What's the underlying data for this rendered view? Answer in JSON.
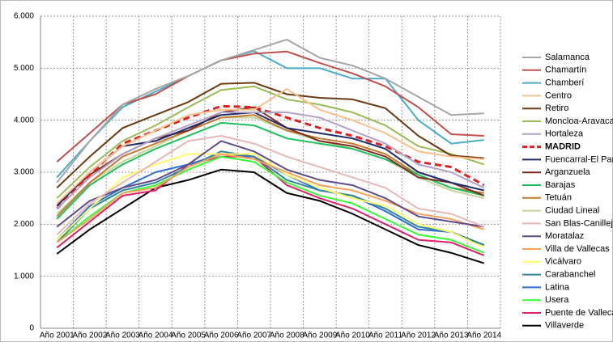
{
  "chart_data": {
    "type": "line",
    "categories": [
      "Año 2001",
      "Año 2002",
      "Año 2003",
      "Año 2004",
      "Año 2005",
      "Año 2006",
      "Año 2007",
      "Año 2008",
      "Año 2009",
      "Año 2010",
      "Año 2011",
      "Año 2012",
      "Año 2013",
      "Año 2014"
    ],
    "ylim": [
      0,
      6000
    ],
    "yticks": [
      {
        "value": 0,
        "label": "0"
      },
      {
        "value": 1000,
        "label": "1.000"
      },
      {
        "value": 2000,
        "label": "2.000"
      },
      {
        "value": 3000,
        "label": "3.000"
      },
      {
        "value": 4000,
        "label": "4.000"
      },
      {
        "value": 5000,
        "label": "5.000"
      },
      {
        "value": 6000,
        "label": "6.000"
      }
    ],
    "grid": true,
    "legend": "right",
    "series": [
      {
        "name": "Salamanca",
        "color": "#a6a6a6",
        "values": [
          2800,
          3600,
          4300,
          4600,
          4850,
          5150,
          5350,
          5550,
          5200,
          5050,
          4800,
          4450,
          4100,
          4130
        ]
      },
      {
        "name": "Chamartín",
        "color": "#c0504d",
        "values": [
          3200,
          3750,
          4300,
          4500,
          4850,
          5150,
          5280,
          5320,
          5100,
          4900,
          4650,
          4250,
          3730,
          3700
        ]
      },
      {
        "name": "Chamberí",
        "color": "#4bacc6",
        "values": [
          2900,
          3600,
          4250,
          4550,
          4850,
          5150,
          5330,
          5000,
          5000,
          4800,
          4800,
          4000,
          3550,
          3620
        ]
      },
      {
        "name": "Centro",
        "color": "#fac090",
        "values": [
          2400,
          3000,
          3500,
          3800,
          4100,
          4200,
          4200,
          4600,
          4200,
          4000,
          3750,
          3400,
          3300,
          3250
        ]
      },
      {
        "name": "Retiro",
        "color": "#6b3a12",
        "values": [
          2700,
          3300,
          3850,
          4100,
          4350,
          4700,
          4720,
          4500,
          4430,
          4400,
          4230,
          3700,
          3320,
          3270
        ]
      },
      {
        "name": "Moncloa-Aravaca",
        "color": "#9bbb59",
        "values": [
          2500,
          3100,
          3600,
          3900,
          4250,
          4580,
          4650,
          4400,
          4300,
          4150,
          3900,
          3500,
          3350,
          3150
        ]
      },
      {
        "name": "Hortaleza",
        "color": "#b3a2c7",
        "values": [
          2300,
          2900,
          3350,
          3650,
          3900,
          4150,
          4150,
          4150,
          4050,
          3800,
          3550,
          3150,
          3000,
          2700
        ]
      },
      {
        "name": "MADRID",
        "color": "#e02020",
        "dashed": true,
        "values": [
          2300,
          2950,
          3550,
          3800,
          4050,
          4270,
          4250,
          4050,
          3850,
          3700,
          3500,
          3200,
          3100,
          2750
        ]
      },
      {
        "name": "Fuencarral-El Pard",
        "color": "#1f2a6b",
        "values": [
          2350,
          3000,
          3500,
          3600,
          3850,
          4100,
          4150,
          3850,
          3750,
          3650,
          3450,
          3000,
          2800,
          2650
        ]
      },
      {
        "name": "Arganzuela",
        "color": "#7f2a1e",
        "values": [
          2400,
          2950,
          3350,
          3650,
          3800,
          4150,
          4250,
          3850,
          3600,
          3500,
          3300,
          2900,
          2800,
          2550
        ]
      },
      {
        "name": "Barajas",
        "color": "#1fbf5f",
        "values": [
          2100,
          2750,
          3150,
          3450,
          3700,
          3950,
          3900,
          3650,
          3550,
          3450,
          3250,
          2950,
          2700,
          2550
        ]
      },
      {
        "name": "Tetuán",
        "color": "#c07a30",
        "values": [
          2150,
          2800,
          3300,
          3550,
          3800,
          4050,
          4100,
          3800,
          3650,
          3550,
          3350,
          2950,
          2700,
          2600
        ]
      },
      {
        "name": "Ciudad Lineal",
        "color": "#c4d79b",
        "values": [
          2200,
          2800,
          3200,
          3500,
          3800,
          4050,
          4050,
          3800,
          3600,
          3450,
          3250,
          2900,
          2650,
          2500
        ]
      },
      {
        "name": "San Blas-Canillejas",
        "color": "#e6b9b8",
        "values": [
          1800,
          2400,
          2800,
          3200,
          3600,
          3700,
          3550,
          3300,
          3100,
          2900,
          2700,
          2300,
          2200,
          1950
        ]
      },
      {
        "name": "Moratalaz",
        "color": "#5f4b8b",
        "values": [
          1950,
          2450,
          2700,
          2850,
          3150,
          3600,
          3400,
          3050,
          2850,
          2750,
          2500,
          2150,
          2050,
          1950
        ]
      },
      {
        "name": "Villa de Vallecas",
        "color": "#f7a35c",
        "values": [
          1650,
          2100,
          2600,
          2700,
          3100,
          3350,
          3250,
          3000,
          2750,
          2650,
          2450,
          2200,
          2100,
          1900
        ]
      },
      {
        "name": "Vicálvaro",
        "color": "#ffff66",
        "values": [
          1700,
          2300,
          2900,
          3150,
          3350,
          3350,
          3350,
          2950,
          2700,
          2500,
          2350,
          2000,
          1850,
          1550
        ]
      },
      {
        "name": "Carabanchel",
        "color": "#31859c",
        "values": [
          1650,
          2300,
          2650,
          2800,
          3100,
          3400,
          3300,
          2850,
          2650,
          2550,
          2300,
          1950,
          1850,
          1600
        ]
      },
      {
        "name": "Latina",
        "color": "#2f6fd0",
        "values": [
          1700,
          2350,
          2700,
          3000,
          3150,
          3350,
          3300,
          2950,
          2650,
          2550,
          2250,
          1900,
          1850,
          1600
        ]
      },
      {
        "name": "Usera",
        "color": "#33ff33",
        "values": [
          1650,
          2150,
          2600,
          2750,
          3050,
          3300,
          3200,
          2800,
          2550,
          2400,
          2100,
          1800,
          1700,
          1450
        ]
      },
      {
        "name": "Puente de Vallecas",
        "color": "#e0206a",
        "values": [
          1550,
          2050,
          2550,
          2650,
          3150,
          3300,
          3300,
          2750,
          2500,
          2300,
          2000,
          1700,
          1650,
          1400
        ]
      },
      {
        "name": "Villaverde",
        "color": "#000000",
        "values": [
          1430,
          1900,
          2300,
          2700,
          2850,
          3050,
          3000,
          2600,
          2450,
          2200,
          1900,
          1600,
          1450,
          1250
        ]
      }
    ]
  }
}
